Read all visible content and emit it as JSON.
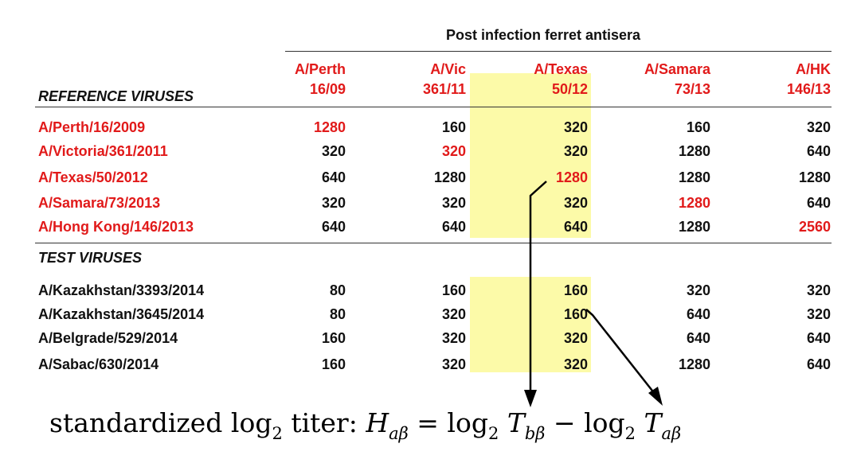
{
  "header": {
    "title": "Post infection ferret antisera",
    "columns": [
      {
        "line1": "A/Perth",
        "line2": "16/09"
      },
      {
        "line1": "A/Vic",
        "line2": "361/11"
      },
      {
        "line1": "A/Texas",
        "line2": "50/12"
      },
      {
        "line1": "A/Samara",
        "line2": "73/13"
      },
      {
        "line1": "A/HK",
        "line2": "146/13"
      }
    ]
  },
  "reference": {
    "label": "REFERENCE VIRUSES",
    "rows": [
      {
        "name": "A/Perth/16/2009",
        "values": [
          "1280",
          "160",
          "320",
          "160",
          "320"
        ]
      },
      {
        "name": "A/Victoria/361/2011",
        "values": [
          "320",
          "320",
          "320",
          "1280",
          "640"
        ]
      },
      {
        "name": "A/Texas/50/2012",
        "values": [
          "640",
          "1280",
          "1280",
          "1280",
          "1280"
        ]
      },
      {
        "name": "A/Samara/73/2013",
        "values": [
          "320",
          "320",
          "320",
          "1280",
          "640"
        ]
      },
      {
        "name": "A/Hong Kong/146/2013",
        "values": [
          "640",
          "640",
          "640",
          "1280",
          "2560"
        ]
      }
    ]
  },
  "test": {
    "label": "TEST VIRUSES",
    "rows": [
      {
        "name": "A/Kazakhstan/3393/2014",
        "values": [
          "80",
          "160",
          "160",
          "320",
          "320"
        ]
      },
      {
        "name": "A/Kazakhstan/3645/2014",
        "values": [
          "80",
          "320",
          "160",
          "640",
          "320"
        ]
      },
      {
        "name": "A/Belgrade/529/2014",
        "values": [
          "160",
          "320",
          "320",
          "640",
          "640"
        ]
      },
      {
        "name": "A/Sabac/630/2014",
        "values": [
          "160",
          "320",
          "320",
          "1280",
          "640"
        ]
      }
    ]
  },
  "formula": {
    "prefix": "standardized log",
    "base": "2",
    "word": " titer: ",
    "H": "H",
    "H_sub": "aβ",
    "equals": " = log",
    "base2": "2",
    "T1": "T",
    "T1_sub": "bβ",
    "minus": " − log",
    "base3": "2",
    "T2": "T",
    "T2_sub": "aβ"
  },
  "colors": {
    "highlight": "#fcfaa8",
    "reference_red": "#e11a1a",
    "text": "#111111"
  }
}
